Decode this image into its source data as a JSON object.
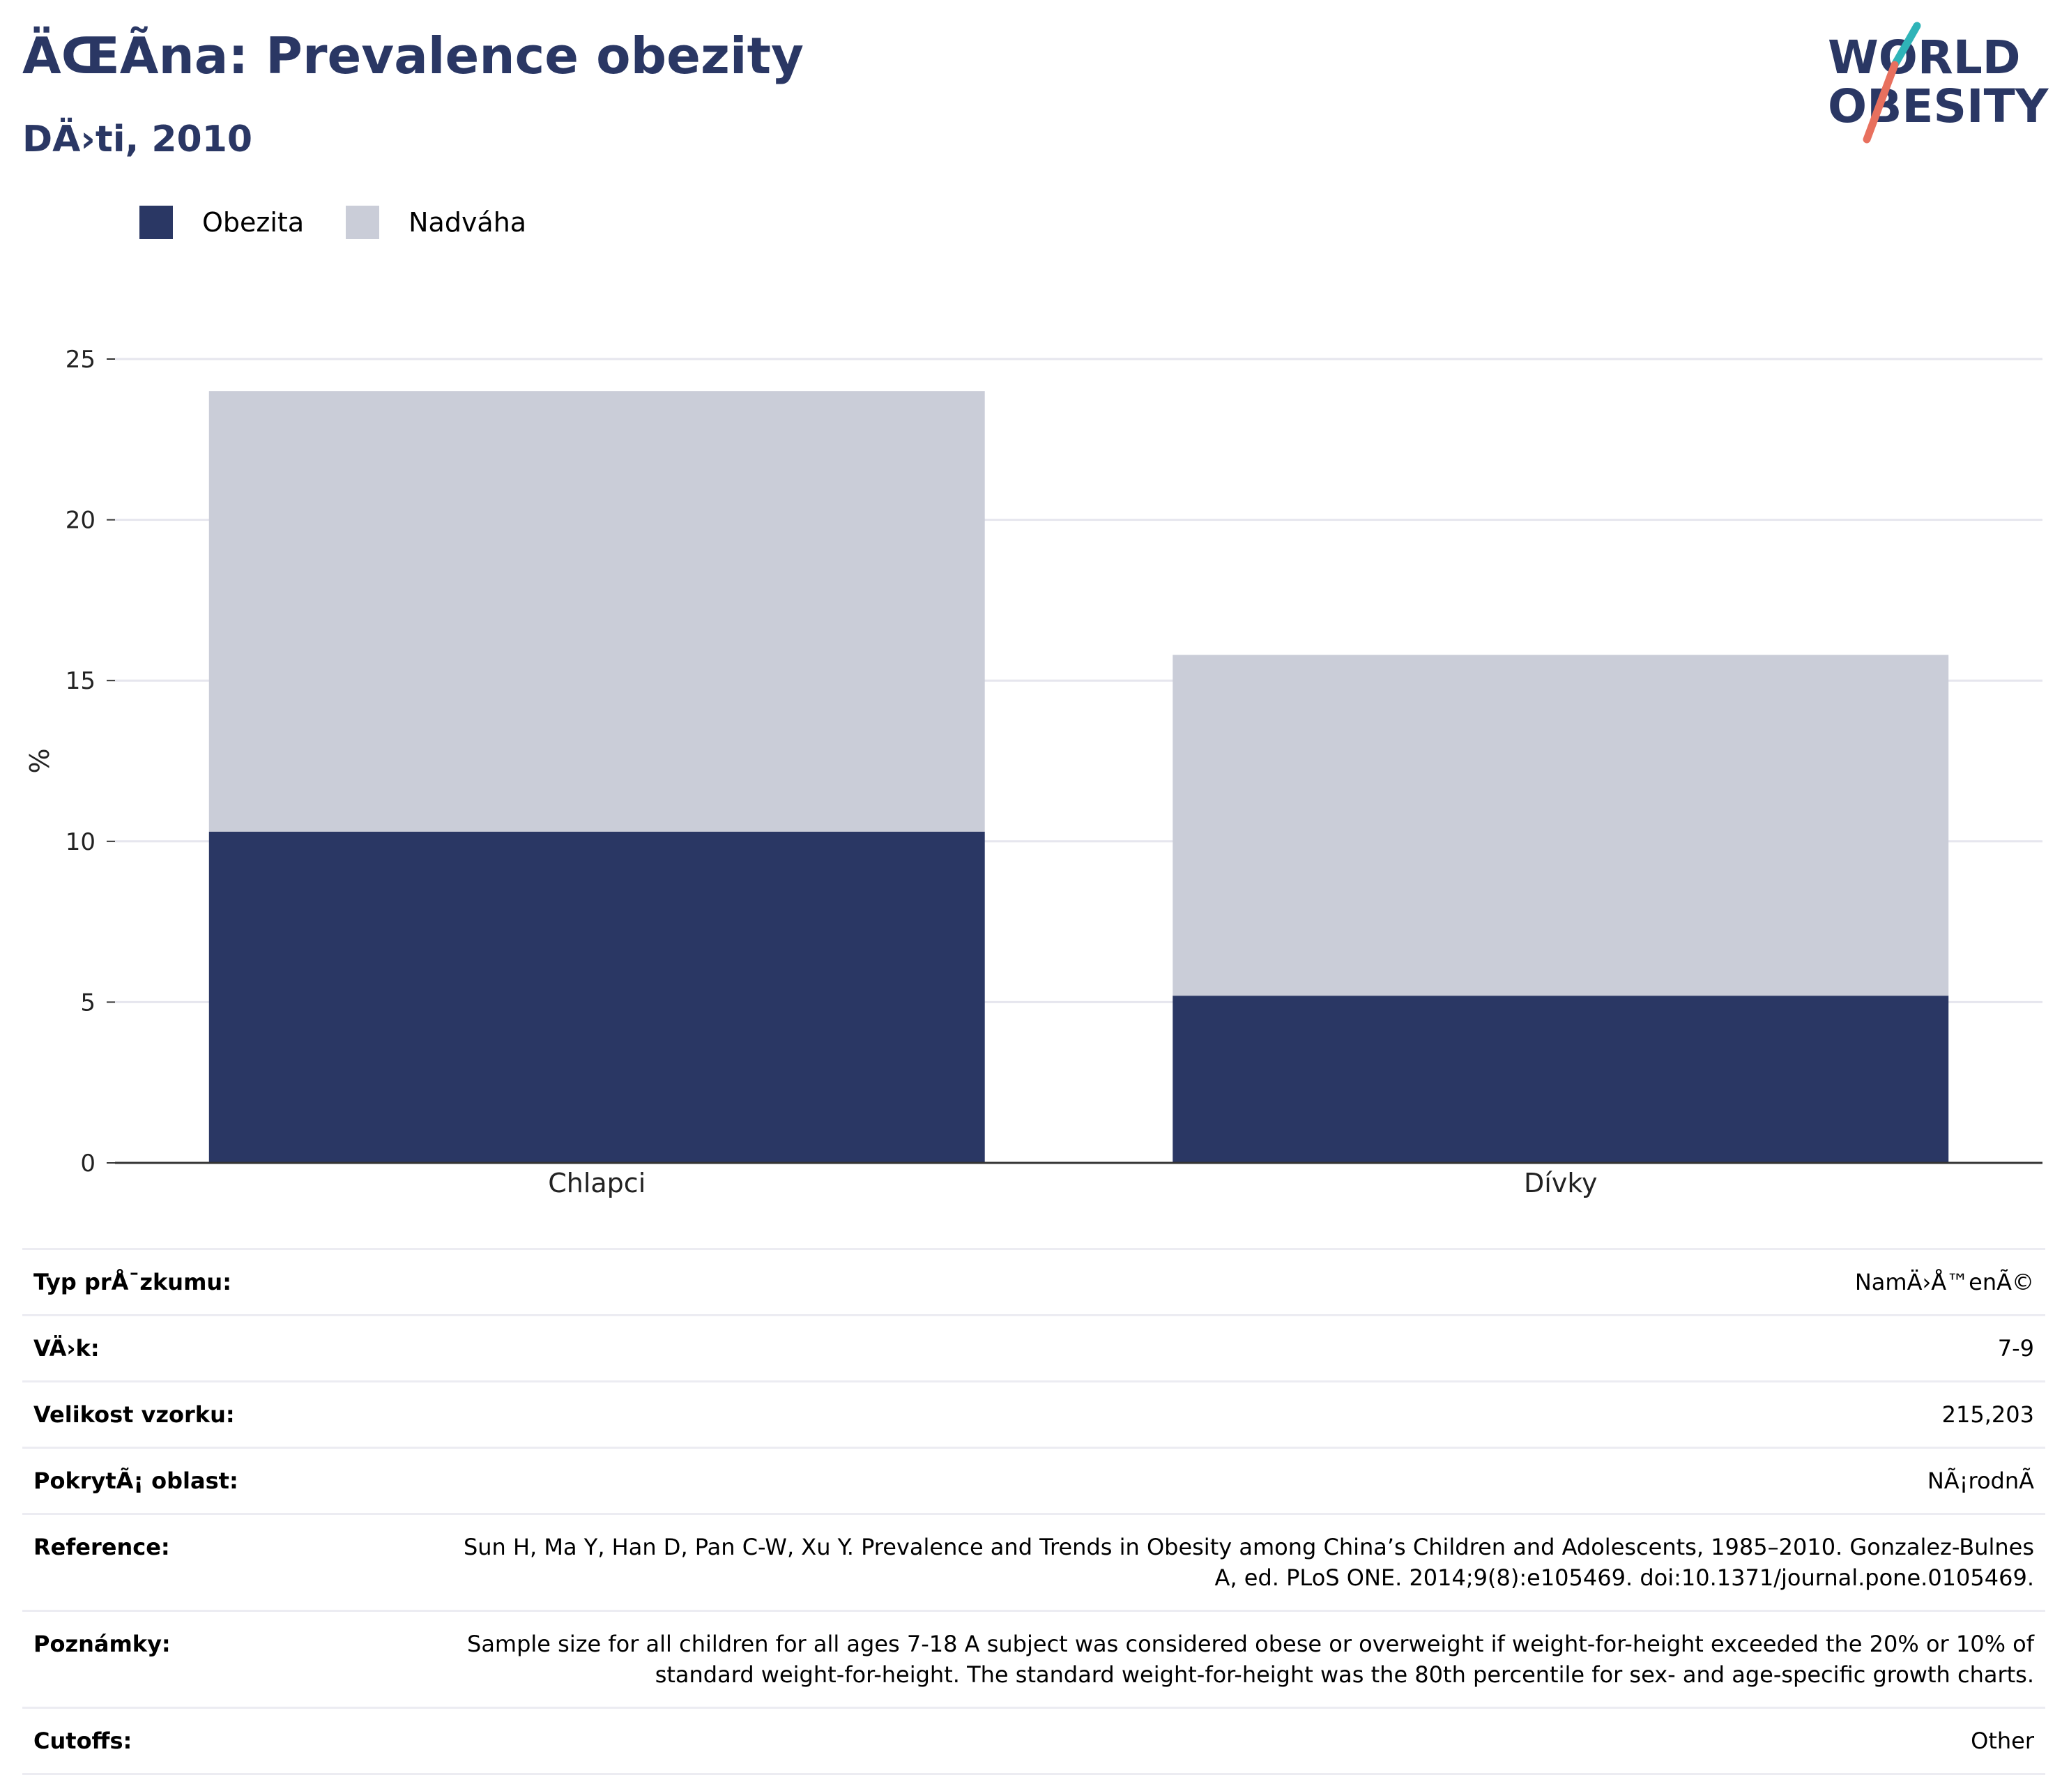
{
  "header": {
    "title": "ÄŒÃ­na: Prevalence obezity",
    "subtitle": "DÄ›ti, 2010"
  },
  "logo": {
    "line1": "WORLD",
    "line2": "OBESITY"
  },
  "colors": {
    "obesity": "#2a3764",
    "overweight": "#cacdd8",
    "title": "#2a3764",
    "logo_teal": "#2fb4b8",
    "logo_coral": "#e8705e"
  },
  "legend": {
    "items": [
      {
        "label": "Obezita",
        "color": "#2a3764"
      },
      {
        "label": "Nadváha",
        "color": "#cacdd8"
      }
    ]
  },
  "chart_data": {
    "type": "bar",
    "stacked": true,
    "categories": [
      "Chlapci",
      "Dívky"
    ],
    "series": [
      {
        "name": "Obezita",
        "values": [
          10.3,
          5.2
        ]
      },
      {
        "name": "Nadváha",
        "values": [
          13.7,
          10.6
        ]
      }
    ],
    "ylabel": "%",
    "ylim": [
      0,
      25
    ],
    "yticks": [
      0,
      5,
      10,
      15,
      20,
      25
    ],
    "grid": true,
    "legend_position": "top-left"
  },
  "info": {
    "rows": [
      {
        "label": "Typ prÅ¯zkumu:",
        "value": "NamÄ›Å™enÃ©"
      },
      {
        "label": "VÄ›k:",
        "value": "7-9"
      },
      {
        "label": "Velikost vzorku:",
        "value": "215,203"
      },
      {
        "label": "PokrytÃ¡ oblast:",
        "value": "NÃ¡rodnÃ­"
      },
      {
        "label": "Reference:",
        "value": "Sun H, Ma Y, Han D, Pan C-W, Xu Y. Prevalence and Trends in Obesity among China’s Children and Adolescents, 1985–2010. Gonzalez-Bulnes A, ed. PLoS ONE. 2014;9(8):e105469. doi:10.1371/journal.pone.0105469."
      },
      {
        "label": "Poznámky:",
        "value": "Sample size for all children for all ages 7-18 A subject was considered obese or overweight if weight-for-height exceeded the 20% or 10% of standard weight-for-height. The standard weight-for-height was the 80th percentile for sex- and age-specific growth charts."
      },
      {
        "label": "Cutoffs:",
        "value": "Other"
      }
    ]
  }
}
